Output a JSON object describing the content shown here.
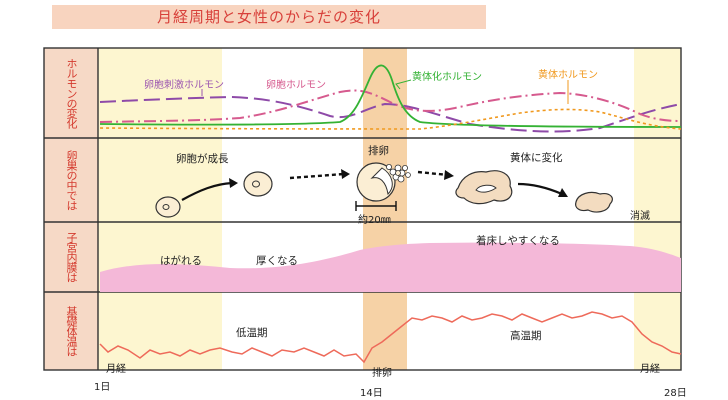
{
  "title": "月経周期と女性のからだの変化",
  "rows": {
    "hormone": "ホルモンの変化",
    "ovary": "卵巣の中では",
    "endometrium": "子宮内膜は",
    "temperature": "基礎体温は"
  },
  "hormone_labels": {
    "fsh": "卵胞刺激ホルモン",
    "estrogen": "卵胞ホルモン",
    "lh": "黄体化ホルモン",
    "progesterone": "黄体ホルモン"
  },
  "ovary_labels": {
    "growth": "卵胞が成長",
    "ovulation": "排卵",
    "size": "約20㎜",
    "corpus_luteum": "黄体に変化",
    "disappear": "消滅"
  },
  "endometrium_labels": {
    "shed": "はがれる",
    "thicken": "厚くなる",
    "implant": "着床しやすくなる"
  },
  "temperature_labels": {
    "menses_start": "月経",
    "low": "低温期",
    "ovulation": "排卵",
    "high": "高温期",
    "menses_end": "月経"
  },
  "axis": {
    "day1": "1日",
    "day14": "14日",
    "day28": "28日"
  },
  "colors": {
    "title": "#d8403a",
    "row_label": "#d43a2e",
    "fsh": "#9c57b0",
    "estrogen": "#d65a8e",
    "lh": "#34b234",
    "progesterone": "#f0991f",
    "endometrium": "#f4b8d8",
    "temperature": "#ee6a5a",
    "menses_band": "#fdf6d0",
    "ovulation_band": "#f6d2a6"
  }
}
